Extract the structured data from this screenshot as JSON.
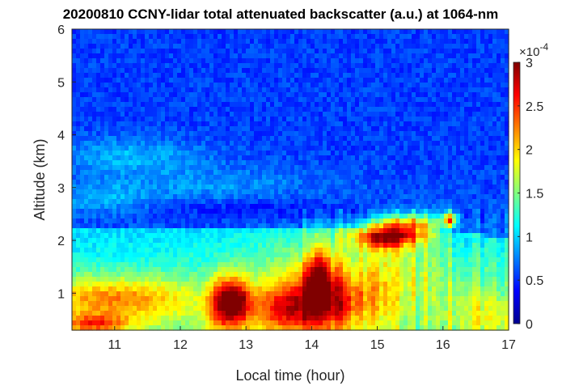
{
  "chart_data": {
    "type": "heatmap",
    "title": "20200810 CCNY-lidar total attenuated backscatter (a.u.) at 1064-nm",
    "xlabel": "Local time (hour)",
    "ylabel": "Altitude (km)",
    "xlim": [
      10.35,
      17.0
    ],
    "ylim": [
      0.3,
      6.0
    ],
    "x_ticks": [
      11,
      12,
      13,
      14,
      15,
      16,
      17
    ],
    "x_tick_labels": [
      "11",
      "12",
      "13",
      "14",
      "15",
      "16",
      "17"
    ],
    "y_ticks": [
      1,
      2,
      3,
      4,
      5,
      6
    ],
    "y_tick_labels": [
      "1",
      "2",
      "3",
      "4",
      "5",
      "6"
    ],
    "colorbar": {
      "colormap": "jet",
      "clim": [
        0,
        3
      ],
      "ticks": [
        0,
        0.5,
        1,
        1.5,
        2,
        2.5,
        3
      ],
      "tick_labels": [
        "0",
        "0.5",
        "1",
        "1.5",
        "2",
        "2.5",
        "3"
      ],
      "exponent_label": "×10",
      "exponent_power": "-4"
    },
    "field_description_points": [
      {
        "time": 10.4,
        "altitude": 2.1,
        "value": 1.3
      },
      {
        "time": 15.2,
        "altitude": 2.2,
        "value": 2.9
      },
      {
        "time": 12.6,
        "altitude": 0.8,
        "value": 2.7
      },
      {
        "time": 14.1,
        "altitude": 1.3,
        "value": 2.6
      },
      {
        "time": 16.1,
        "altitude": 2.4,
        "value": 2.9
      }
    ]
  }
}
